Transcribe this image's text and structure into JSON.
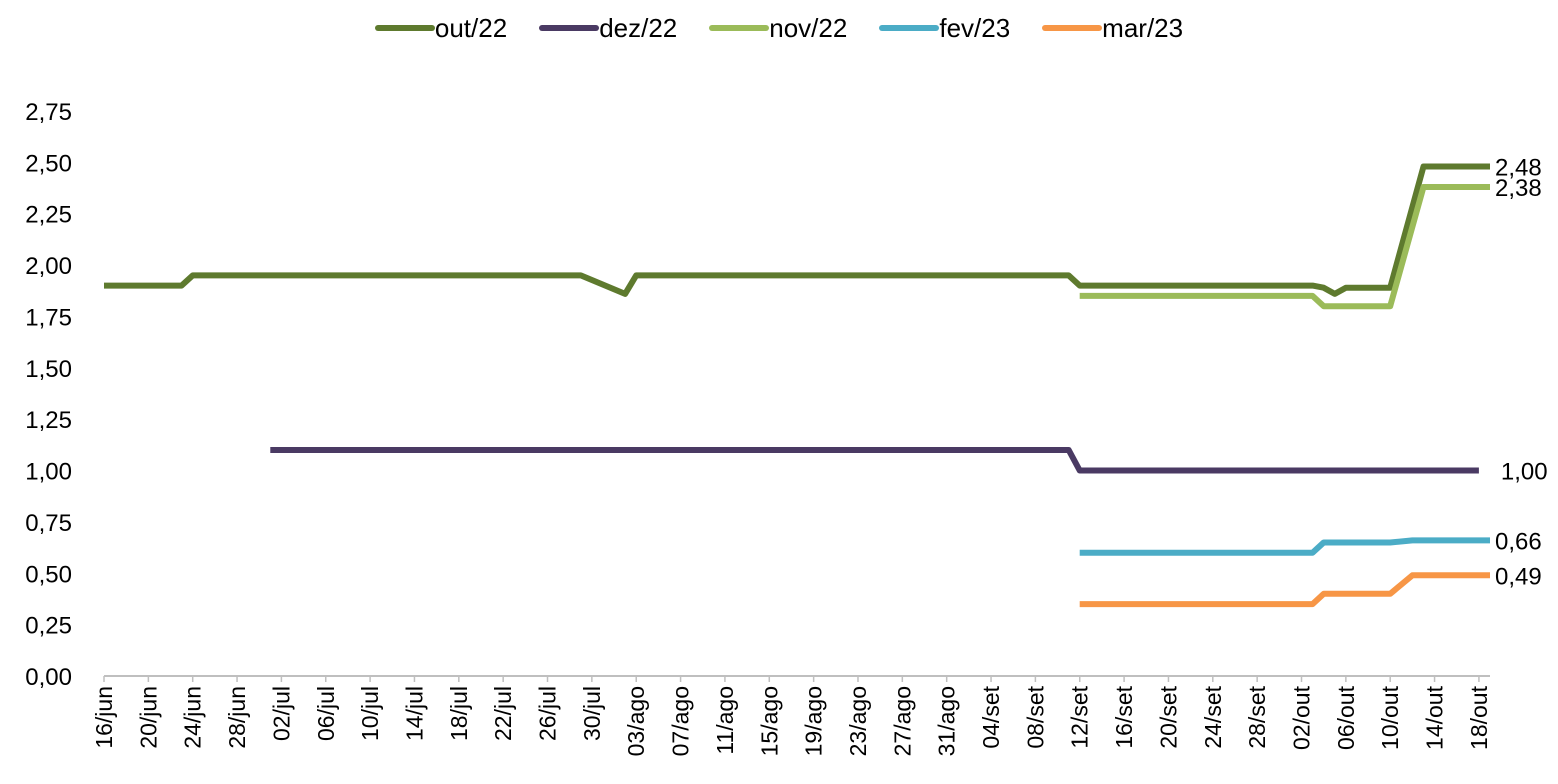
{
  "chart_data": {
    "type": "line",
    "title": "",
    "xlabel": "",
    "ylabel": "",
    "ylim": [
      0,
      2.75
    ],
    "yticks": [
      "0,00",
      "0,25",
      "0,50",
      "0,75",
      "1,00",
      "1,25",
      "1,50",
      "1,75",
      "2,00",
      "2,25",
      "2,50",
      "2,75"
    ],
    "x_tick_labels": [
      "16/jun",
      "20/jun",
      "24/jun",
      "28/jun",
      "02/jul",
      "06/jul",
      "10/jul",
      "14/jul",
      "18/jul",
      "22/jul",
      "26/jul",
      "30/jul",
      "03/ago",
      "07/ago",
      "11/ago",
      "15/ago",
      "19/ago",
      "23/ago",
      "27/ago",
      "31/ago",
      "04/set",
      "08/set",
      "12/set",
      "16/set",
      "20/set",
      "24/set",
      "28/set",
      "02/out",
      "06/out",
      "10/out",
      "14/out",
      "18/out"
    ],
    "x_range": [
      "2022-06-16",
      "2022-10-19"
    ],
    "grid": false,
    "legend_position": "top",
    "series": [
      {
        "name": "out/22",
        "color": "#5e7a2e",
        "points": [
          [
            "2022-06-16",
            1.9
          ],
          [
            "2022-06-23",
            1.9
          ],
          [
            "2022-06-24",
            1.95
          ],
          [
            "2022-07-29",
            1.95
          ],
          [
            "2022-08-02",
            1.86
          ],
          [
            "2022-08-03",
            1.95
          ],
          [
            "2022-09-11",
            1.95
          ],
          [
            "2022-09-12",
            1.9
          ],
          [
            "2022-10-03",
            1.9
          ],
          [
            "2022-10-04",
            1.89
          ],
          [
            "2022-10-05",
            1.86
          ],
          [
            "2022-10-06",
            1.89
          ],
          [
            "2022-10-10",
            1.89
          ],
          [
            "2022-10-13",
            2.48
          ],
          [
            "2022-10-19",
            2.48
          ]
        ],
        "end_label": "2,48"
      },
      {
        "name": "dez/22",
        "color": "#4a3a63",
        "points": [
          [
            "2022-07-01",
            1.1
          ],
          [
            "2022-09-11",
            1.1
          ],
          [
            "2022-09-12",
            1.0
          ],
          [
            "2022-10-18",
            1.0
          ]
        ],
        "end_label": "1,00"
      },
      {
        "name": "nov/22",
        "color": "#9bbb59",
        "points": [
          [
            "2022-09-12",
            1.85
          ],
          [
            "2022-10-03",
            1.85
          ],
          [
            "2022-10-04",
            1.8
          ],
          [
            "2022-10-10",
            1.8
          ],
          [
            "2022-10-13",
            2.38
          ],
          [
            "2022-10-19",
            2.38
          ]
        ],
        "end_label": "2,38"
      },
      {
        "name": "fev/23",
        "color": "#4bacc6",
        "points": [
          [
            "2022-09-12",
            0.6
          ],
          [
            "2022-10-03",
            0.6
          ],
          [
            "2022-10-04",
            0.65
          ],
          [
            "2022-10-10",
            0.65
          ],
          [
            "2022-10-12",
            0.66
          ],
          [
            "2022-10-19",
            0.66
          ]
        ],
        "end_label": "0,66"
      },
      {
        "name": "mar/23",
        "color": "#f79646",
        "points": [
          [
            "2022-09-12",
            0.35
          ],
          [
            "2022-10-03",
            0.35
          ],
          [
            "2022-10-04",
            0.4
          ],
          [
            "2022-10-10",
            0.4
          ],
          [
            "2022-10-12",
            0.49
          ],
          [
            "2022-10-19",
            0.49
          ]
        ],
        "end_label": "0,49"
      }
    ]
  }
}
